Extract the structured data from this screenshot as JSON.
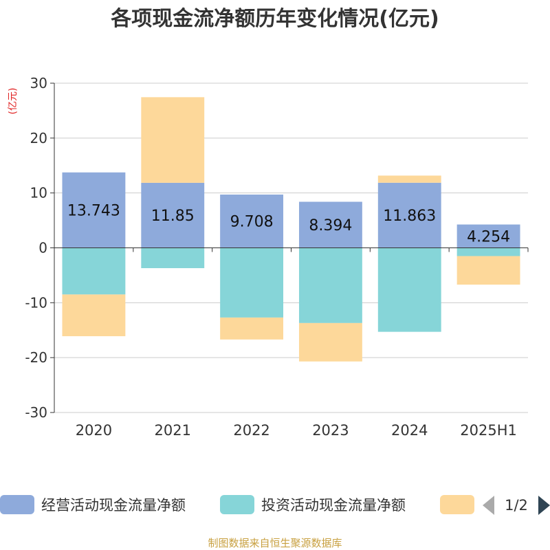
{
  "chart_data": {
    "type": "bar",
    "stacked": true,
    "title": "各项现金流净额历年变化情况(亿元)",
    "unit_label": "(亿元)",
    "categories": [
      "2020",
      "2021",
      "2022",
      "2023",
      "2024",
      "2025H1"
    ],
    "ylim": [
      -30,
      30
    ],
    "yticks": [
      30,
      20,
      10,
      0,
      -10,
      -20,
      -30
    ],
    "grid": true,
    "series": [
      {
        "name": "经营活动现金流量净额",
        "color": "#8eaadb",
        "values": [
          13.743,
          11.85,
          9.708,
          8.394,
          11.863,
          4.254
        ],
        "show_labels": true
      },
      {
        "name": "投资活动现金流量净额",
        "color": "#86d5d8",
        "values": [
          -8.5,
          -3.7,
          -12.7,
          -13.7,
          -15.3,
          -1.5
        ],
        "show_labels": false
      },
      {
        "name": "",
        "color": "#fdd89a",
        "values": [
          -7.6,
          15.6,
          -4.0,
          -7.0,
          1.3,
          -5.2
        ],
        "show_labels": false
      }
    ],
    "legend": {
      "position": "bottom",
      "page": "1/2"
    },
    "source": "制图数据来自恒生聚源数据库"
  }
}
